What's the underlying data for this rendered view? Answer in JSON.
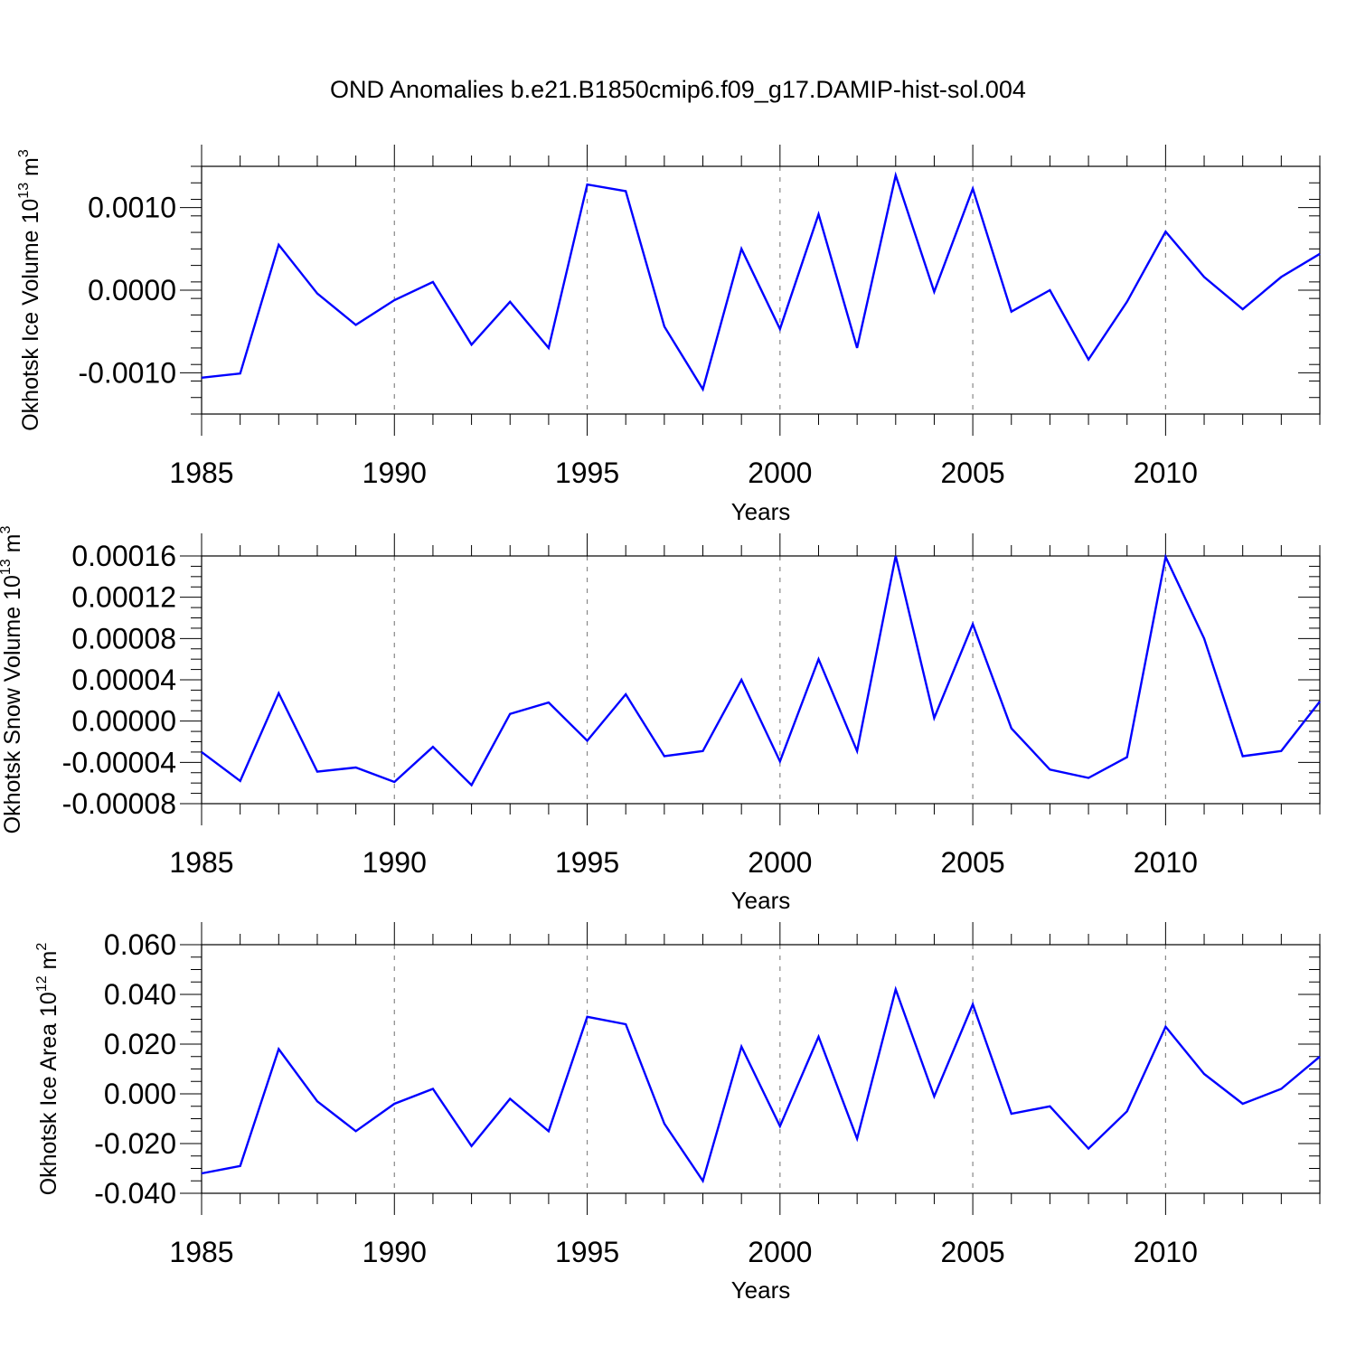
{
  "figure": {
    "title": "OND Anomalies b.e21.B1850cmip6.f09_g17.DAMIP-hist-sol.004",
    "line_color": "#0000ff",
    "grid_color": "#888888"
  },
  "chart_data": [
    {
      "type": "line",
      "title": "OND Anomalies b.e21.B1850cmip6.f09_g17.DAMIP-hist-sol.004",
      "ylabel": "Okhotsk Ice Volume 10",
      "ylabel_exponent": "13",
      "ylabel_unit": " m",
      "ylabel_unit_exponent": "3",
      "xlabel": "Years",
      "xlim": [
        1985,
        2014
      ],
      "ylim": [
        -0.0015,
        0.0015
      ],
      "yticks": [
        -0.001,
        0.0,
        0.001
      ],
      "ytick_labels": [
        "-0.0010",
        "0.0000",
        "0.0010"
      ],
      "yminor_step": 0.0002,
      "xticks": [
        1985,
        1990,
        1995,
        2000,
        2005,
        2010
      ],
      "xtick_labels": [
        "1985",
        "1990",
        "1995",
        "2000",
        "2005",
        "2010"
      ],
      "grid": "vertical dashed at major x ticks",
      "x": [
        1985,
        1986,
        1987,
        1988,
        1989,
        1990,
        1991,
        1992,
        1993,
        1994,
        1995,
        1996,
        1997,
        1998,
        1999,
        2000,
        2001,
        2002,
        2003,
        2004,
        2005,
        2006,
        2007,
        2008,
        2009,
        2010,
        2011,
        2012,
        2013,
        2014
      ],
      "series": [
        {
          "name": "Okhotsk Ice Volume",
          "values": [
            -0.00106,
            -0.00101,
            0.00055,
            -4e-05,
            -0.00042,
            -0.00012,
            0.0001,
            -0.00066,
            -0.00014,
            -0.0007,
            0.00128,
            0.0012,
            -0.00044,
            -0.0012,
            0.0005,
            -0.00047,
            0.00092,
            -0.0007,
            0.00139,
            -2e-05,
            0.00123,
            -0.00026,
            0.0,
            -0.00084,
            -0.00014,
            0.00071,
            0.00016,
            -0.00023,
            0.00016,
            0.00044
          ]
        }
      ]
    },
    {
      "type": "line",
      "ylabel": "Okhotsk Snow Volume 10",
      "ylabel_exponent": "13",
      "ylabel_unit": " m",
      "ylabel_unit_exponent": "3",
      "xlabel": "Years",
      "xlim": [
        1985,
        2014
      ],
      "ylim": [
        -8e-05,
        0.00016
      ],
      "yticks": [
        -8e-05,
        -4e-05,
        0.0,
        4e-05,
        8e-05,
        0.00012,
        0.00016
      ],
      "ytick_labels": [
        "-0.00008",
        "-0.00004",
        "0.00000",
        "0.00004",
        "0.00008",
        "0.00012",
        "0.00016"
      ],
      "yminor_step": 1e-05,
      "xticks": [
        1985,
        1990,
        1995,
        2000,
        2005,
        2010
      ],
      "xtick_labels": [
        "1985",
        "1990",
        "1995",
        "2000",
        "2005",
        "2010"
      ],
      "grid": "vertical dashed at major x ticks",
      "x": [
        1985,
        1986,
        1987,
        1988,
        1989,
        1990,
        1991,
        1992,
        1993,
        1994,
        1995,
        1996,
        1997,
        1998,
        1999,
        2000,
        2001,
        2002,
        2003,
        2004,
        2005,
        2006,
        2007,
        2008,
        2009,
        2010,
        2011,
        2012,
        2013,
        2014
      ],
      "series": [
        {
          "name": "Okhotsk Snow Volume",
          "values": [
            -3e-05,
            -5.8e-05,
            2.7e-05,
            -4.9e-05,
            -4.5e-05,
            -5.9e-05,
            -2.5e-05,
            -6.2e-05,
            7e-06,
            1.8e-05,
            -1.9e-05,
            2.6e-05,
            -3.4e-05,
            -2.9e-05,
            4e-05,
            -3.9e-05,
            6e-05,
            -2.9e-05,
            0.00016,
            3e-06,
            9.4e-05,
            -7e-06,
            -4.7e-05,
            -5.5e-05,
            -3.5e-05,
            0.000159,
            8e-05,
            -3.4e-05,
            -2.9e-05,
            1.9e-05
          ]
        }
      ]
    },
    {
      "type": "line",
      "ylabel": "Okhotsk Ice Area 10",
      "ylabel_exponent": "12",
      "ylabel_unit": " m",
      "ylabel_unit_exponent": "2",
      "xlabel": "Years",
      "xlim": [
        1985,
        2014
      ],
      "ylim": [
        -0.04,
        0.06
      ],
      "yticks": [
        -0.04,
        -0.02,
        0.0,
        0.02,
        0.04,
        0.06
      ],
      "ytick_labels": [
        "-0.040",
        "-0.020",
        "0.000",
        "0.020",
        "0.040",
        "0.060"
      ],
      "yminor_step": 0.005,
      "xticks": [
        1985,
        1990,
        1995,
        2000,
        2005,
        2010
      ],
      "xtick_labels": [
        "1985",
        "1990",
        "1995",
        "2000",
        "2005",
        "2010"
      ],
      "grid": "vertical dashed at major x ticks",
      "x": [
        1985,
        1986,
        1987,
        1988,
        1989,
        1990,
        1991,
        1992,
        1993,
        1994,
        1995,
        1996,
        1997,
        1998,
        1999,
        2000,
        2001,
        2002,
        2003,
        2004,
        2005,
        2006,
        2007,
        2008,
        2009,
        2010,
        2011,
        2012,
        2013,
        2014
      ],
      "series": [
        {
          "name": "Okhotsk Ice Area",
          "values": [
            -0.032,
            -0.029,
            0.018,
            -0.003,
            -0.015,
            -0.004,
            0.002,
            -0.021,
            -0.002,
            -0.015,
            0.031,
            0.028,
            -0.012,
            -0.035,
            0.019,
            -0.013,
            0.023,
            -0.018,
            0.042,
            -0.001,
            0.036,
            -0.008,
            -0.005,
            -0.022,
            -0.007,
            0.027,
            0.008,
            -0.004,
            0.002,
            0.015
          ]
        }
      ]
    }
  ]
}
